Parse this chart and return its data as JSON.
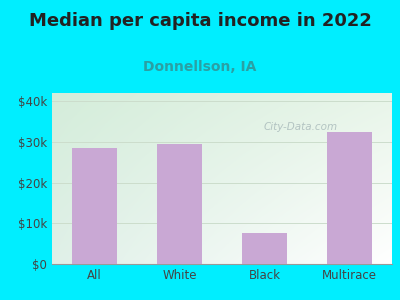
{
  "title": "Median per capita income in 2022",
  "subtitle": "Donnellson, IA",
  "categories": [
    "All",
    "White",
    "Black",
    "Multirace"
  ],
  "values": [
    28500,
    29500,
    7500,
    32500
  ],
  "bar_color": "#c9a8d4",
  "title_fontsize": 13,
  "subtitle_fontsize": 10,
  "subtitle_color": "#2aa0a4",
  "title_color": "#222222",
  "background_outer": "#00eeff",
  "background_inner_topleft": "#d4edda",
  "background_inner_bottomright": "#f0f8f0",
  "background_inner_white": "#ffffff",
  "ylim": [
    0,
    42000
  ],
  "yticks": [
    0,
    10000,
    20000,
    30000,
    40000
  ],
  "ytick_labels": [
    "$0",
    "$10k",
    "$20k",
    "$30k",
    "$40k"
  ],
  "watermark": "City-Data.com",
  "watermark_color": "#aabbbb",
  "grid_color": "#ccddcc",
  "tick_color": "#444444"
}
